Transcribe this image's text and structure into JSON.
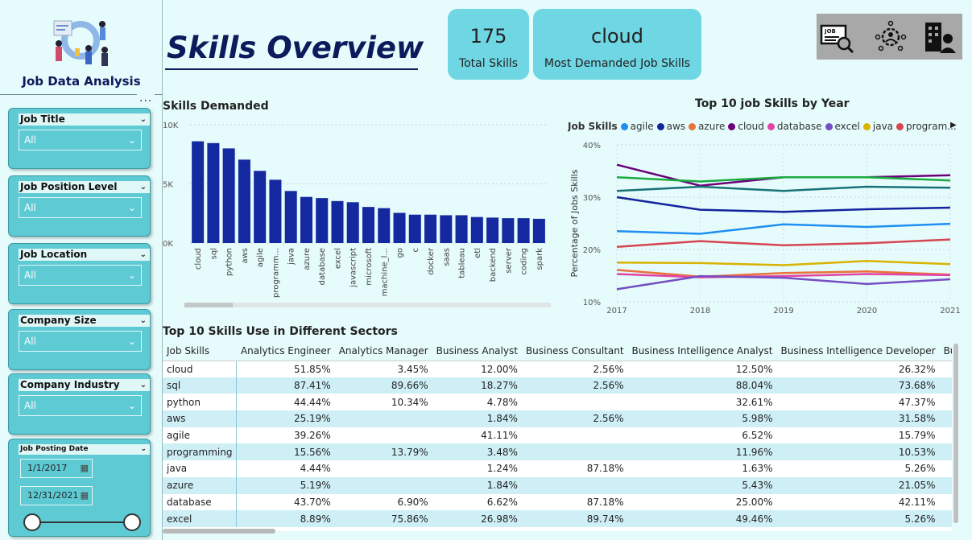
{
  "sidebar": {
    "app_title": "Job Data Analysis",
    "more_label": "...",
    "filters": [
      {
        "label": "Job Title",
        "value": "All"
      },
      {
        "label": "Job Position Level",
        "value": "All"
      },
      {
        "label": "Job Location",
        "value": "All"
      },
      {
        "label": "Company Size",
        "value": "All"
      },
      {
        "label": "Company Industry",
        "value": "All"
      }
    ],
    "date_filter": {
      "label": "Job Posting Date",
      "start": "1/1/2017",
      "end": "12/31/2021"
    }
  },
  "header": {
    "title": "Skills Overview",
    "kpis": [
      {
        "value": "175",
        "label": "Total Skills"
      },
      {
        "value": "cloud",
        "label": "Most Demanded Job Skills"
      }
    ],
    "nav_icons": [
      "job-search-icon",
      "skills-settings-icon",
      "company-building-icon"
    ],
    "nav_icon_text": "JOB"
  },
  "colors": {
    "bar": "#1428a0",
    "kpi": "#6fd6e3",
    "filter": "#5ecad4",
    "title": "#0d1a5c"
  },
  "chart_data": [
    {
      "type": "bar",
      "title": "Skills Demanded",
      "categories": [
        "cloud",
        "sql",
        "python",
        "aws",
        "agile",
        "programm...",
        "java",
        "azure",
        "database",
        "excel",
        "javascript",
        "microsoft",
        "machine_l...",
        "go",
        "c",
        "docker",
        "saas",
        "tableau",
        "etl",
        "backend",
        "server",
        "coding",
        "spark"
      ],
      "values": [
        8600,
        8450,
        8000,
        7050,
        6100,
        5350,
        4400,
        3900,
        3800,
        3550,
        3450,
        3050,
        2950,
        2550,
        2400,
        2400,
        2350,
        2350,
        2200,
        2150,
        2100,
        2100,
        2050
      ],
      "ylim": [
        0,
        10000
      ],
      "yticks": [
        "0K",
        "5K",
        "10K"
      ],
      "grid": true
    },
    {
      "type": "line",
      "title": "Top 10 job Skills by Year",
      "xlabel": "",
      "ylabel": "Percentage of Jobs Skills",
      "legend_title": "Job Skills",
      "legend_placement": "top",
      "x": [
        "2017",
        "2018",
        "2019",
        "2020",
        "2021"
      ],
      "ylim": [
        10,
        40
      ],
      "yticks": [
        "10%",
        "20%",
        "30%",
        "40%"
      ],
      "series": [
        {
          "name": "agile",
          "color": "#1f8ff0",
          "values": [
            23.5,
            23.0,
            24.8,
            24.3,
            24.9
          ]
        },
        {
          "name": "aws",
          "color": "#12239e",
          "values": [
            30.0,
            27.6,
            27.2,
            27.7,
            28.0
          ]
        },
        {
          "name": "azure",
          "color": "#e8733a",
          "values": [
            16.1,
            14.8,
            15.5,
            15.8,
            15.2
          ]
        },
        {
          "name": "cloud",
          "color": "#6b007b",
          "values": [
            36.2,
            32.2,
            33.8,
            33.8,
            34.2
          ]
        },
        {
          "name": "database",
          "color": "#e044a7",
          "values": [
            15.3,
            14.7,
            14.9,
            15.3,
            15.1
          ]
        },
        {
          "name": "excel",
          "color": "#744ec2",
          "values": [
            12.4,
            14.9,
            14.6,
            13.4,
            14.3
          ]
        },
        {
          "name": "java",
          "color": "#d9b300",
          "values": [
            17.5,
            17.4,
            17.0,
            17.8,
            17.2
          ]
        },
        {
          "name": "program...",
          "color": "#d64550",
          "values": [
            20.5,
            21.6,
            20.8,
            21.2,
            21.9
          ]
        },
        {
          "name": "",
          "color": "#1aab40",
          "values": [
            33.8,
            33.0,
            33.8,
            33.8,
            33.2
          ]
        },
        {
          "name": "",
          "color": "#197278",
          "values": [
            31.2,
            32.0,
            31.2,
            32.0,
            31.8
          ]
        }
      ]
    },
    {
      "type": "table",
      "title": "Top 10 Skills Use in Different Sectors",
      "columns": [
        "Job Skills",
        "Analytics Engineer",
        "Analytics Manager",
        "Business Analyst",
        "Business Consultant",
        "Business Intelligence Analyst",
        "Business Intelligence Developer",
        "Business Process"
      ],
      "rows": [
        [
          "cloud",
          "51.85%",
          "3.45%",
          "12.00%",
          "2.56%",
          "12.50%",
          "26.32%",
          ""
        ],
        [
          "sql",
          "87.41%",
          "89.66%",
          "18.27%",
          "2.56%",
          "88.04%",
          "73.68%",
          ""
        ],
        [
          "python",
          "44.44%",
          "10.34%",
          "4.78%",
          "",
          "32.61%",
          "47.37%",
          ""
        ],
        [
          "aws",
          "25.19%",
          "",
          "1.84%",
          "2.56%",
          "5.98%",
          "31.58%",
          ""
        ],
        [
          "agile",
          "39.26%",
          "",
          "41.11%",
          "",
          "6.52%",
          "15.79%",
          ""
        ],
        [
          "programming",
          "15.56%",
          "13.79%",
          "3.48%",
          "",
          "11.96%",
          "10.53%",
          ""
        ],
        [
          "java",
          "4.44%",
          "",
          "1.24%",
          "87.18%",
          "1.63%",
          "5.26%",
          ""
        ],
        [
          "azure",
          "5.19%",
          "",
          "1.84%",
          "",
          "5.43%",
          "21.05%",
          ""
        ],
        [
          "database",
          "43.70%",
          "6.90%",
          "6.62%",
          "87.18%",
          "25.00%",
          "42.11%",
          ""
        ],
        [
          "excel",
          "8.89%",
          "75.86%",
          "26.98%",
          "89.74%",
          "49.46%",
          "5.26%",
          ""
        ]
      ]
    }
  ]
}
